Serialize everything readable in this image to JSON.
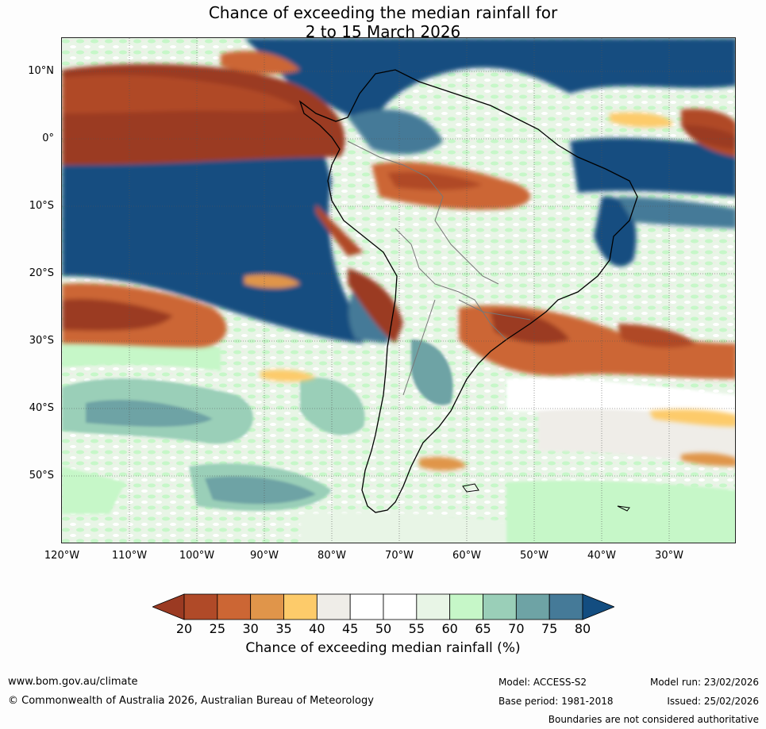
{
  "title_line1": "Chance of exceeding the median rainfall for",
  "title_line2": "2 to 15 March 2026",
  "lat_labels": [
    "10°N",
    "0°",
    "10°S",
    "20°S",
    "30°S",
    "40°S",
    "50°S"
  ],
  "lon_labels": [
    "120°W",
    "110°W",
    "100°W",
    "90°W",
    "80°W",
    "70°W",
    "60°W",
    "50°W",
    "40°W",
    "30°W"
  ],
  "colorbar": {
    "ticks": [
      "20",
      "25",
      "30",
      "35",
      "40",
      "45",
      "50",
      "55",
      "60",
      "65",
      "70",
      "75",
      "80"
    ],
    "colors": [
      "#9b3a22",
      "#b04a28",
      "#cc6634",
      "#e0954a",
      "#fdcb6a",
      "#efede8",
      "#ffffff",
      "#ffffff",
      "#e8f5e6",
      "#c6f7c8",
      "#9acfb8",
      "#6ea3a5",
      "#457a98",
      "#134d80"
    ],
    "label": "Chance of exceeding median rainfall (%)"
  },
  "footer": {
    "website": "www.bom.gov.au/climate",
    "copyright": "© Commonwealth of Australia 2026, Australian Bureau of Meteorology",
    "model": "Model: ACCESS-S2",
    "base_period": "Base period: 1981-2018",
    "model_run": "Model run: 23/02/2026",
    "issued": "Issued: 25/02/2026",
    "disclaimer": "Boundaries are not considered authoritative"
  }
}
